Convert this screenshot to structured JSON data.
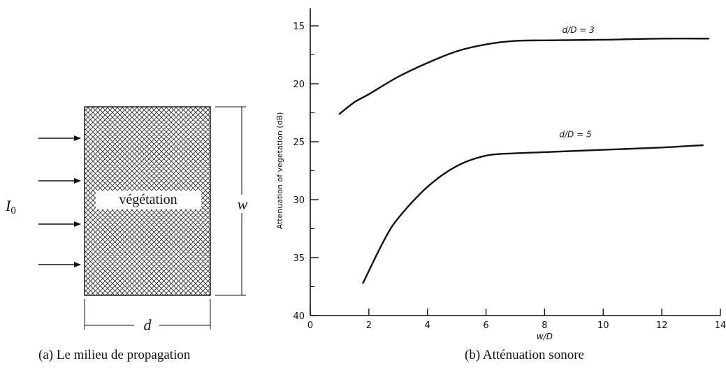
{
  "panel_a": {
    "incident_label_base": "I",
    "incident_label_sub": "0",
    "medium_label": "végétation",
    "width_label": "w",
    "depth_label": "d",
    "caption": "(a) Le milieu de propagation",
    "arrow_count": 4
  },
  "panel_b": {
    "caption": "(b) Atténuation sonore"
  },
  "chart_data": {
    "type": "line",
    "xlabel": "w/D",
    "ylabel": "Attenuation of vegetation (dB)",
    "xlim": [
      0,
      14
    ],
    "ylim": [
      15,
      40
    ],
    "y_inverted": true,
    "x_ticks": [
      0,
      2,
      4,
      6,
      8,
      10,
      12,
      14
    ],
    "y_ticks": [
      15,
      20,
      25,
      30,
      35,
      40
    ],
    "grid": false,
    "series": [
      {
        "name": "d/D = 3",
        "x": [
          1.0,
          1.5,
          2.0,
          3.0,
          4.0,
          5.0,
          6.0,
          7.0,
          8.0,
          10.0,
          12.0,
          13.6
        ],
        "y": [
          22.6,
          21.6,
          20.9,
          19.4,
          18.2,
          17.2,
          16.6,
          16.3,
          16.25,
          16.2,
          16.1,
          16.1
        ]
      },
      {
        "name": "d/D = 5",
        "x": [
          1.8,
          2.5,
          3.0,
          4.0,
          5.0,
          6.0,
          7.0,
          8.0,
          10.0,
          12.0,
          13.4
        ],
        "y": [
          37.2,
          33.6,
          31.6,
          28.9,
          27.1,
          26.2,
          26.0,
          25.9,
          25.7,
          25.5,
          25.3
        ]
      }
    ]
  }
}
